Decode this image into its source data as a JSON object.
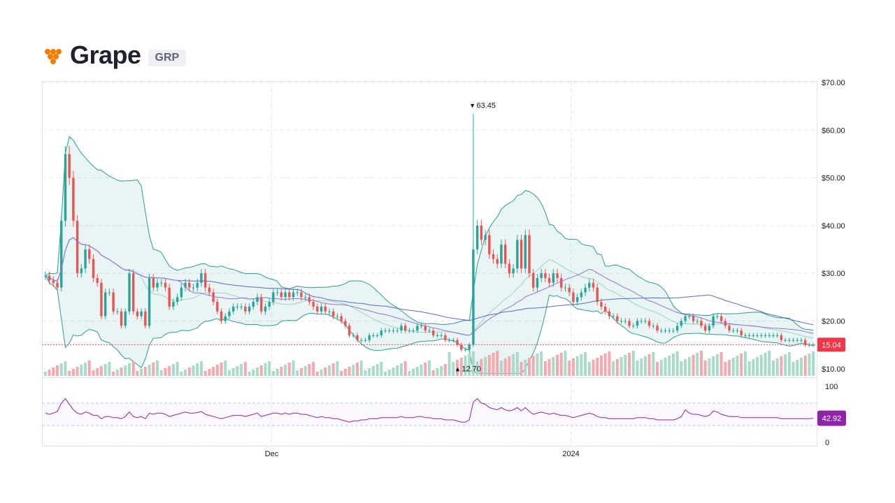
{
  "header": {
    "name": "Grape",
    "ticker": "GRP",
    "logo_icon": "grape-icon"
  },
  "colors": {
    "up": "#26a69a",
    "down": "#ef5350",
    "upVol": "#a9dbc9",
    "downVol": "#f5a9ae",
    "band": "#2a9d8f",
    "ma": "#5c6bc0",
    "rsi": "#8e24aa",
    "grid": "#e6e9ef"
  },
  "chart_data": {
    "type": "line",
    "title": "",
    "price_axis": {
      "ticks": [
        "$70.00",
        "$60.00",
        "$50.00",
        "$40.00",
        "$30.00",
        "$20.00",
        "$10.00"
      ],
      "ylim": [
        8.5,
        70
      ]
    },
    "time_axis": {
      "ticks": [
        "Dec",
        "2024"
      ]
    },
    "last_price": "15.04",
    "max_marker": {
      "label": "63.45",
      "value": 63.45
    },
    "min_marker": {
      "label": "12.70",
      "value": 12.7
    },
    "series": [
      {
        "name": "",
        "values": [
          29.5,
          28.5,
          28,
          27,
          41,
          55,
          50,
          41,
          30,
          31,
          35,
          33,
          29,
          28,
          21,
          26,
          26,
          22,
          22,
          19,
          22,
          30,
          22,
          21,
          22,
          19,
          29,
          27,
          28,
          28,
          27,
          23,
          24,
          25,
          27,
          28,
          27,
          27,
          28,
          30,
          27,
          26,
          24,
          22,
          20,
          21,
          22,
          23,
          23,
          23,
          22,
          23,
          24,
          25,
          22,
          23,
          24,
          26,
          26,
          25,
          26,
          25,
          26,
          26,
          25,
          25,
          24,
          23,
          22,
          23,
          22,
          22,
          21,
          21,
          20,
          19,
          17,
          17,
          16,
          16,
          16,
          17,
          17,
          17,
          18,
          18,
          18,
          18,
          18,
          19,
          18,
          18,
          18,
          19,
          19,
          18,
          18,
          17,
          17,
          17,
          16,
          16,
          16,
          15,
          14,
          14,
          15,
          35,
          40,
          37,
          38,
          34,
          33,
          32,
          36,
          32,
          30,
          31,
          37,
          31,
          38,
          30,
          27,
          29,
          30,
          29,
          28,
          30,
          29,
          27,
          27,
          26,
          24,
          25,
          26,
          27,
          28,
          27,
          24,
          23,
          22,
          21,
          21,
          20,
          20,
          20,
          19,
          19,
          20,
          20,
          20,
          19,
          19,
          18,
          18,
          18,
          18,
          18,
          19,
          20,
          21,
          21,
          20,
          20,
          19,
          18,
          19,
          21,
          21,
          20,
          19,
          18,
          18,
          18,
          17,
          17,
          17,
          17,
          17,
          17,
          17,
          17,
          17,
          17,
          16,
          16,
          16,
          16,
          16,
          16,
          15,
          15,
          15
        ]
      }
    ],
    "rsi": {
      "name": "",
      "ticks": [
        "100",
        "0"
      ],
      "last": "42.92",
      "values": [
        52,
        50,
        52,
        55,
        70,
        78,
        68,
        58,
        52,
        50,
        54,
        52,
        48,
        48,
        42,
        46,
        46,
        44,
        44,
        42,
        46,
        54,
        46,
        44,
        46,
        42,
        52,
        50,
        52,
        52,
        50,
        46,
        48,
        50,
        52,
        54,
        52,
        52,
        53,
        55,
        50,
        48,
        46,
        44,
        42,
        44,
        46,
        48,
        48,
        48,
        46,
        48,
        50,
        52,
        46,
        48,
        50,
        52,
        52,
        50,
        52,
        50,
        52,
        52,
        50,
        50,
        48,
        46,
        44,
        46,
        44,
        44,
        42,
        42,
        40,
        38,
        36,
        38,
        38,
        40,
        40,
        42,
        42,
        42,
        44,
        44,
        44,
        44,
        44,
        46,
        44,
        44,
        44,
        46,
        46,
        44,
        44,
        42,
        42,
        42,
        40,
        40,
        40,
        38,
        36,
        36,
        40,
        72,
        78,
        70,
        68,
        62,
        60,
        58,
        62,
        58,
        56,
        58,
        62,
        56,
        62,
        55,
        50,
        52,
        54,
        52,
        50,
        52,
        50,
        48,
        48,
        46,
        44,
        46,
        48,
        50,
        52,
        50,
        46,
        44,
        44,
        42,
        42,
        42,
        42,
        42,
        42,
        42,
        44,
        44,
        44,
        42,
        42,
        40,
        40,
        40,
        40,
        40,
        42,
        46,
        58,
        52,
        50,
        50,
        48,
        46,
        48,
        56,
        54,
        50,
        48,
        46,
        46,
        46,
        44,
        44,
        44,
        44,
        44,
        44,
        44,
        44,
        44,
        44,
        42,
        42,
        42,
        42,
        42,
        42,
        42,
        42,
        43
      ]
    }
  }
}
